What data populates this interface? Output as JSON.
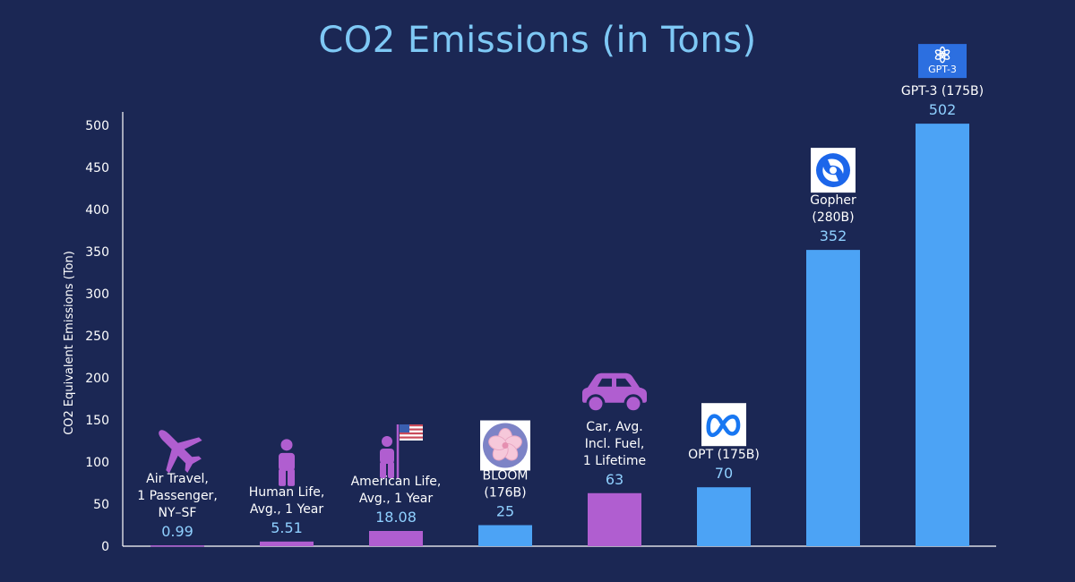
{
  "chart_data": {
    "type": "bar",
    "title": "CO2 Emissions (in Tons)",
    "ylabel": "CO2 Equivalent Emissions (Ton)",
    "xlabel": "",
    "ylim": [
      0,
      500
    ],
    "yticks": [
      0,
      50,
      100,
      150,
      200,
      250,
      300,
      350,
      400,
      450,
      500
    ],
    "grid": false,
    "categories": [
      [
        "Air Travel,",
        "1 Passenger,",
        "NY–SF"
      ],
      [
        "Human Life,",
        "Avg., 1 Year"
      ],
      [
        "American Life,",
        "Avg., 1 Year"
      ],
      [
        "BLOOM",
        "(176B)"
      ],
      [
        "Car, Avg.",
        "Incl. Fuel,",
        "1 Lifetime"
      ],
      [
        "OPT (175B)"
      ],
      [
        "Gopher",
        "(280B)"
      ],
      [
        "GPT-3 (175B)"
      ]
    ],
    "values": [
      0.99,
      5.51,
      18.08,
      25,
      63,
      70,
      352,
      502
    ],
    "value_labels": [
      "0.99",
      "5.51",
      "18.08",
      "25",
      "63",
      "70",
      "352",
      "502"
    ],
    "bar_colors": [
      "#b05ed0",
      "#b05ed0",
      "#b05ed0",
      "#4ca3f5",
      "#b05ed0",
      "#4ca3f5",
      "#4ca3f5",
      "#4ca3f5"
    ],
    "icons": [
      "airplane-icon",
      "person-icon",
      "person-with-us-flag-icon",
      "bloom-logo-icon",
      "car-icon",
      "meta-logo-icon",
      "deepmind-logo-icon",
      "openai-gpt3-logo-icon"
    ],
    "logo_texts": [
      "",
      "",
      "",
      "",
      "",
      "",
      "",
      "GPT-3"
    ]
  },
  "colors": {
    "background": "#1b2754",
    "title": "#7ec8f5",
    "value_label": "#8fd0ff",
    "axis": "#ffffff",
    "purple": "#b05ed0",
    "blue": "#4ca3f5"
  }
}
